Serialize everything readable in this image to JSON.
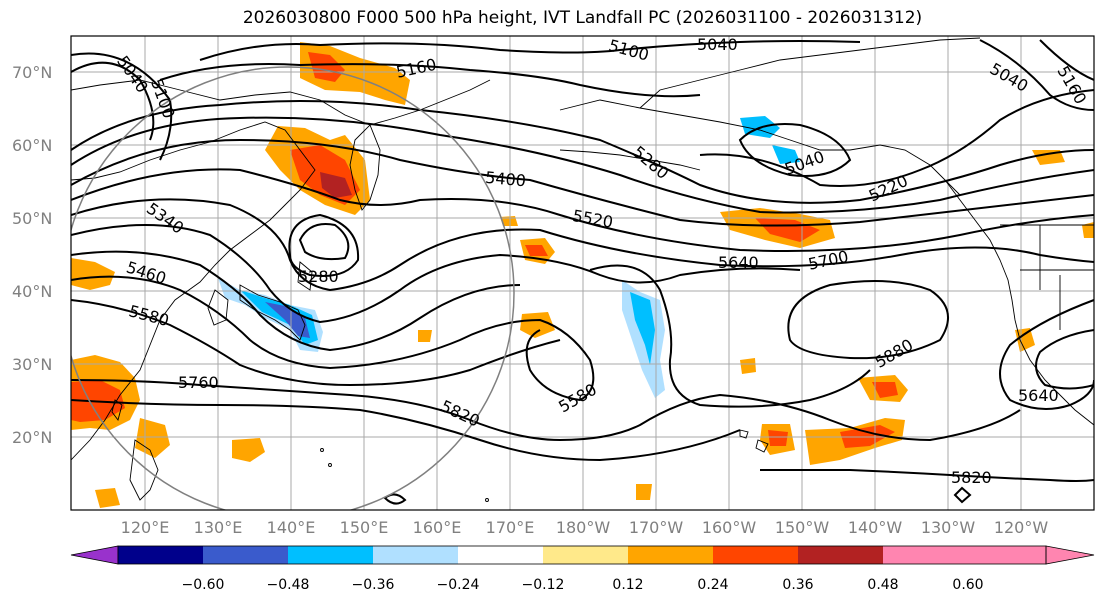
{
  "title": "2026030800 F000 500 hPa height, IVT Landfall PC (2026031100 - 2026031312)",
  "map": {
    "lat_labels": [
      "70°N",
      "60°N",
      "50°N",
      "40°N",
      "30°N",
      "20°N"
    ],
    "lon_labels": [
      "120°E",
      "130°E",
      "140°E",
      "150°E",
      "160°E",
      "170°E",
      "180°W",
      "170°W",
      "160°W",
      "150°W",
      "140°W",
      "130°W",
      "120°W"
    ],
    "contour_labels": [
      {
        "text": "5040"
      },
      {
        "text": "5100"
      },
      {
        "text": "5160"
      },
      {
        "text": "5100"
      },
      {
        "text": "5040"
      },
      {
        "text": "5040"
      },
      {
        "text": "5040"
      },
      {
        "text": "5280"
      },
      {
        "text": "5400"
      },
      {
        "text": "5220"
      },
      {
        "text": "5520"
      },
      {
        "text": "5340"
      },
      {
        "text": "5460"
      },
      {
        "text": "5280"
      },
      {
        "text": "5580"
      },
      {
        "text": "5640"
      },
      {
        "text": "5700"
      },
      {
        "text": "5760"
      },
      {
        "text": "5580"
      },
      {
        "text": "5880"
      },
      {
        "text": "5820"
      },
      {
        "text": "5640"
      },
      {
        "text": "5820"
      },
      {
        "text": "5160"
      }
    ]
  },
  "colorbar": {
    "ticks": [
      "−0.60",
      "−0.48",
      "−0.36",
      "−0.24",
      "−0.12",
      "0.12",
      "0.24",
      "0.36",
      "0.48",
      "0.60"
    ],
    "colors": [
      "#9932cc",
      "#00008b",
      "#3a5bcc",
      "#00bfff",
      "#b0e0ff",
      "#ffffff",
      "#ffe98a",
      "#ffa500",
      "#ff4500",
      "#b22222",
      "#ff85b0",
      "#ff85b0"
    ]
  }
}
